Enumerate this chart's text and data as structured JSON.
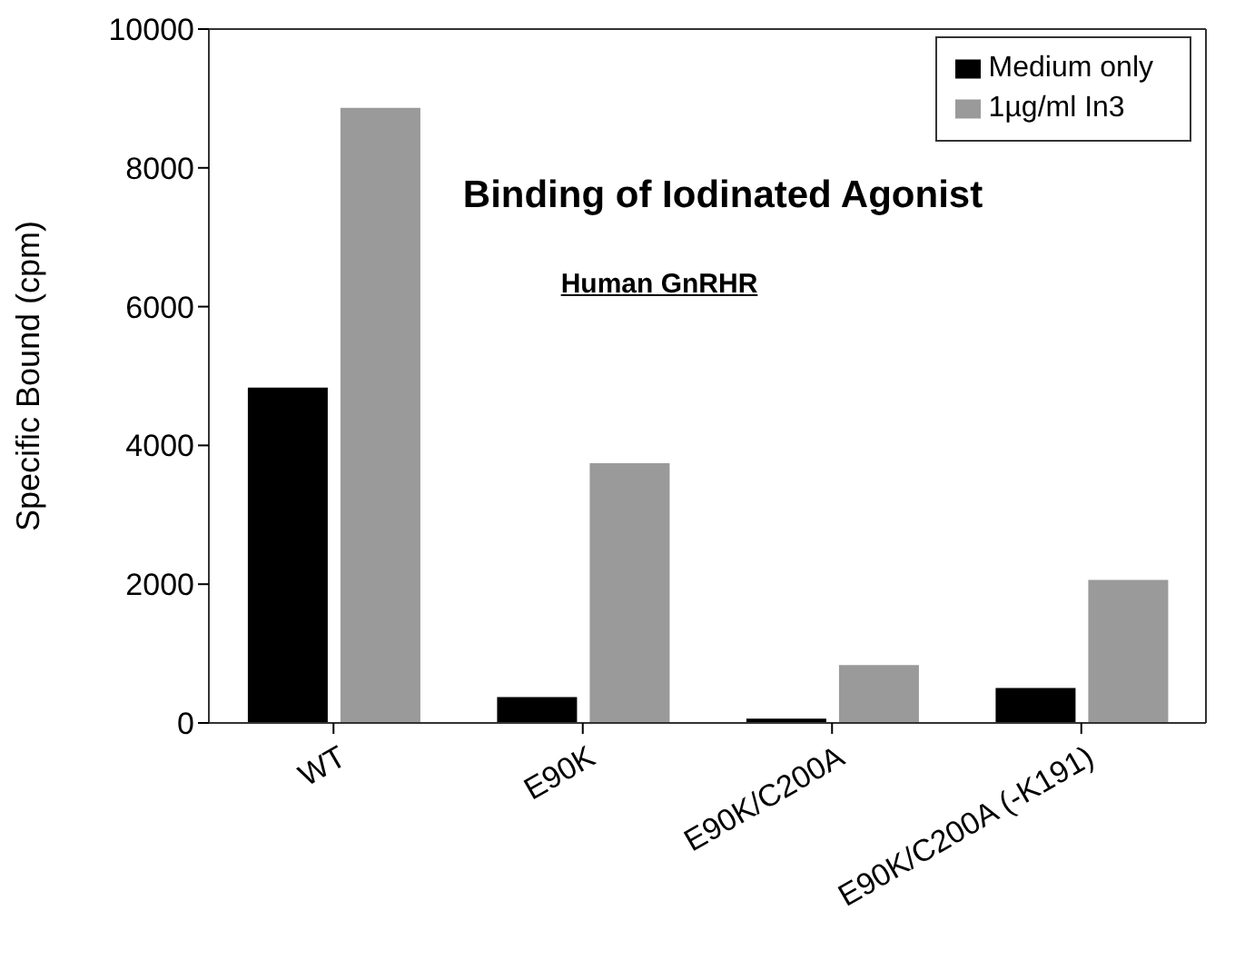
{
  "chart_data": {
    "type": "bar",
    "title": "Binding of Iodinated Agonist",
    "subtitle": "Human GnRHR",
    "ylabel": "Specific Bound (cpm)",
    "categories": [
      "WT",
      "E90K",
      "E90K/C200A",
      "E90K/C200A (-K191)"
    ],
    "series": [
      {
        "name": "Medium only",
        "color": "#000000",
        "values": [
          4820,
          360,
          50,
          490
        ]
      },
      {
        "name": "1µg/ml In3",
        "color": "#9a9a9a",
        "values": [
          8850,
          3730,
          820,
          2050
        ]
      }
    ],
    "ylim": [
      0,
      10000
    ],
    "yticks": [
      0,
      2000,
      4000,
      6000,
      8000,
      10000
    ],
    "grid": false,
    "legend": "top right"
  }
}
